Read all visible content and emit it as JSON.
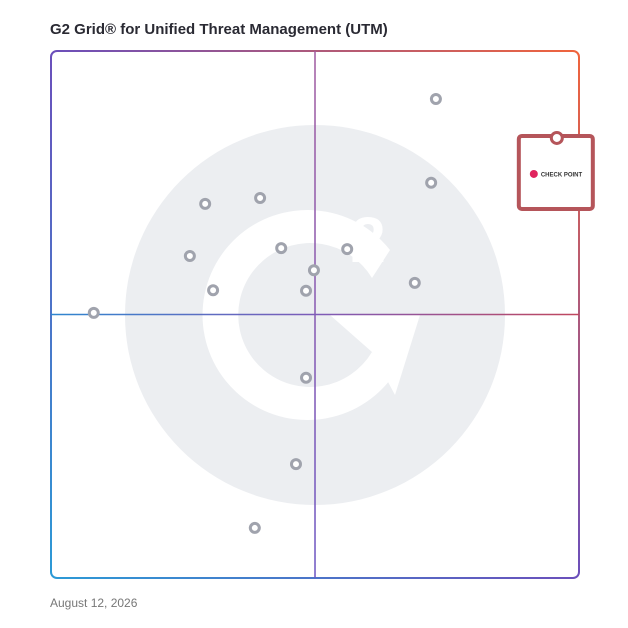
{
  "chart_data": {
    "type": "scatter",
    "title": "G2 Grid® for Unified Threat Management (UTM)",
    "date": "August 12, 2026",
    "xlim": [
      0,
      100
    ],
    "ylim": [
      0,
      100
    ],
    "xticks": [
      50
    ],
    "yticks": [
      50
    ],
    "series": [
      {
        "color": "#a0a3ad",
        "x": [
          72.9,
          72.0,
          29.2,
          39.6,
          43.6,
          56.1,
          26.3,
          49.8,
          68.9,
          30.7,
          48.3,
          8.1,
          48.3,
          46.4,
          38.6
        ],
        "values": [
          90.9,
          75.0,
          71.0,
          72.1,
          62.6,
          62.4,
          61.1,
          58.4,
          56.0,
          54.6,
          54.5,
          50.3,
          38.0,
          21.6,
          9.5
        ]
      },
      {
        "color": "#b5555a",
        "label": "CHECK POINT",
        "x": [
          95.8
        ],
        "values": [
          83.5
        ]
      }
    ]
  }
}
